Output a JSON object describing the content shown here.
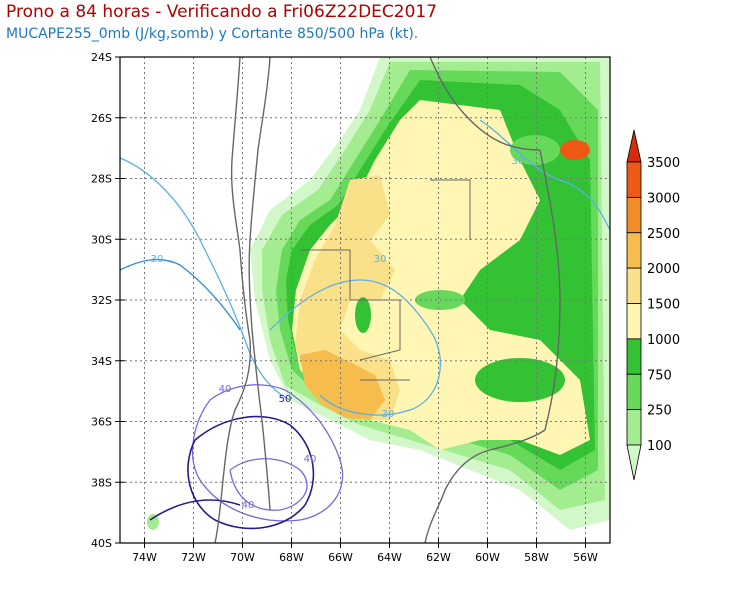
{
  "title": "Prono a 84 horas - Verificando a Fri06Z22DEC2017",
  "subtitle": "MUCAPE255_0mb (J/kg,somb) y Cortante 850/500 hPa (kt).",
  "chart_data": {
    "type": "map",
    "lon_range": [
      -75,
      -55
    ],
    "lat_range": [
      -40,
      -24
    ],
    "x_ticks": [
      "74W",
      "72W",
      "70W",
      "68W",
      "66W",
      "64W",
      "62W",
      "60W",
      "58W",
      "56W"
    ],
    "y_ticks": [
      "24S",
      "26S",
      "28S",
      "30S",
      "32S",
      "34S",
      "36S",
      "38S",
      "40S"
    ],
    "grid": true,
    "colorbar": {
      "levels": [
        "100",
        "250",
        "750",
        "1000",
        "1500",
        "2000",
        "2500",
        "3000",
        "3500"
      ],
      "colors": [
        "#d2f7c8",
        "#a3ec8f",
        "#66d95a",
        "#33c233",
        "#fff6b3",
        "#fbe08a",
        "#f6bd4d",
        "#f38c26",
        "#ee5a16",
        "#d42c0c"
      ]
    },
    "shear_contour_labels": [
      "30",
      "30",
      "30",
      "30",
      "40",
      "40",
      "40",
      "50"
    ],
    "shear_colors": {
      "30": "#5ab0e8",
      "40": "#7a66d9",
      "50": "#2a1a8c"
    }
  }
}
